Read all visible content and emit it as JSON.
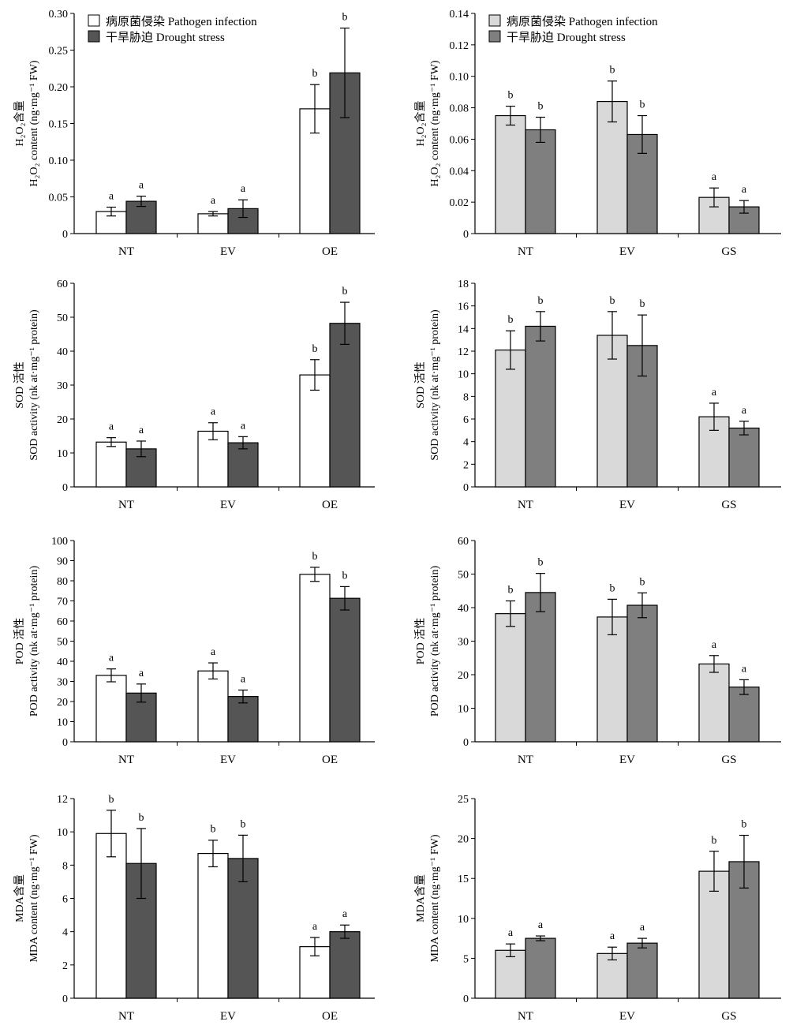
{
  "legend": {
    "pathogen": "病原菌侵染 Pathogen infection",
    "drought": "干旱胁迫 Drought stress"
  },
  "colors": {
    "left_pathogen": "#ffffff",
    "left_drought": "#555555",
    "right_pathogen": "#d9d9d9",
    "right_drought": "#7f7f7f",
    "stroke": "#000000"
  },
  "chart_data": [
    {
      "type": "bar",
      "panel": "left",
      "row": 0,
      "ylabel_zh": "H₂O₂含量",
      "ylabel_en": "H₂O₂ content (ng·mg⁻¹ FW)",
      "categories": [
        "NT",
        "EV",
        "OE"
      ],
      "ylim": [
        0,
        0.3
      ],
      "yticks": [
        "0",
        "0.05",
        "0.10",
        "0.15",
        "0.20",
        "0.25",
        "0.30"
      ],
      "legend": true,
      "series": [
        {
          "name": "病原菌侵染 Pathogen infection",
          "values": [
            0.03,
            0.027,
            0.17
          ],
          "errors": [
            0.006,
            0.003,
            0.033
          ],
          "labels": [
            "a",
            "a",
            "b"
          ]
        },
        {
          "name": "干旱胁迫 Drought stress",
          "values": [
            0.044,
            0.034,
            0.219
          ],
          "errors": [
            0.007,
            0.012,
            0.061
          ],
          "labels": [
            "a",
            "a",
            "b"
          ]
        }
      ]
    },
    {
      "type": "bar",
      "panel": "right",
      "row": 0,
      "ylabel_zh": "H₂O₂含量",
      "ylabel_en": "H₂O₂ content (ng·mg⁻¹ FW)",
      "categories": [
        "NT",
        "EV",
        "GS"
      ],
      "ylim": [
        0,
        0.14
      ],
      "yticks": [
        "0",
        "0.02",
        "0.04",
        "0.06",
        "0.08",
        "0.10",
        "0.12",
        "0.14"
      ],
      "legend": true,
      "series": [
        {
          "name": "病原菌侵染 Pathogen infection",
          "values": [
            0.075,
            0.084,
            0.023
          ],
          "errors": [
            0.006,
            0.013,
            0.006
          ],
          "labels": [
            "b",
            "b",
            "a"
          ]
        },
        {
          "name": "干旱胁迫 Drought stress",
          "values": [
            0.066,
            0.063,
            0.017
          ],
          "errors": [
            0.008,
            0.012,
            0.004
          ],
          "labels": [
            "b",
            "b",
            "a"
          ]
        }
      ]
    },
    {
      "type": "bar",
      "panel": "left",
      "row": 1,
      "ylabel_zh": "SOD 活性",
      "ylabel_en": "SOD activity (nk at·mg⁻¹ protein)",
      "categories": [
        "NT",
        "EV",
        "OE"
      ],
      "ylim": [
        0,
        60
      ],
      "yticks": [
        "0",
        "10",
        "20",
        "30",
        "40",
        "50",
        "60"
      ],
      "legend": false,
      "series": [
        {
          "name": "病原菌侵染 Pathogen infection",
          "values": [
            13.2,
            16.4,
            33.0
          ],
          "errors": [
            1.3,
            2.5,
            4.5
          ],
          "labels": [
            "a",
            "a",
            "b"
          ]
        },
        {
          "name": "干旱胁迫 Drought stress",
          "values": [
            11.2,
            13.0,
            48.2
          ],
          "errors": [
            2.3,
            1.8,
            6.2
          ],
          "labels": [
            "a",
            "a",
            "b"
          ]
        }
      ]
    },
    {
      "type": "bar",
      "panel": "right",
      "row": 1,
      "ylabel_zh": "SOD 活性",
      "ylabel_en": "SOD activity (nk at·mg⁻¹ protein)",
      "categories": [
        "NT",
        "EV",
        "GS"
      ],
      "ylim": [
        0,
        18
      ],
      "yticks": [
        "0",
        "2",
        "4",
        "6",
        "8",
        "10",
        "12",
        "14",
        "16",
        "18"
      ],
      "legend": false,
      "series": [
        {
          "name": "病原菌侵染 Pathogen infection",
          "values": [
            12.1,
            13.4,
            6.2
          ],
          "errors": [
            1.7,
            2.1,
            1.2
          ],
          "labels": [
            "b",
            "b",
            "a"
          ]
        },
        {
          "name": "干旱胁迫 Drought stress",
          "values": [
            14.2,
            12.5,
            5.2
          ],
          "errors": [
            1.3,
            2.7,
            0.6
          ],
          "labels": [
            "b",
            "b",
            "a"
          ]
        }
      ]
    },
    {
      "type": "bar",
      "panel": "left",
      "row": 2,
      "ylabel_zh": "POD 活性",
      "ylabel_en": "POD activity (nk at·mg⁻¹ protein)",
      "categories": [
        "NT",
        "EV",
        "OE"
      ],
      "ylim": [
        0,
        100
      ],
      "yticks": [
        "0",
        "10",
        "20",
        "30",
        "40",
        "50",
        "60",
        "70",
        "80",
        "90",
        "100"
      ],
      "legend": false,
      "series": [
        {
          "name": "病原菌侵染 Pathogen infection",
          "values": [
            33.0,
            35.2,
            83.2
          ],
          "errors": [
            3.2,
            4.0,
            3.5
          ],
          "labels": [
            "a",
            "a",
            "b"
          ]
        },
        {
          "name": "干旱胁迫 Drought stress",
          "values": [
            24.2,
            22.5,
            71.3
          ],
          "errors": [
            4.5,
            3.2,
            5.8
          ],
          "labels": [
            "a",
            "a",
            "b"
          ]
        }
      ]
    },
    {
      "type": "bar",
      "panel": "right",
      "row": 2,
      "ylabel_zh": "POD 活性",
      "ylabel_en": "POD activity (nk at·mg⁻¹ protein)",
      "categories": [
        "NT",
        "EV",
        "GS"
      ],
      "ylim": [
        0,
        60
      ],
      "yticks": [
        "0",
        "10",
        "20",
        "30",
        "40",
        "50",
        "60"
      ],
      "legend": false,
      "series": [
        {
          "name": "病原菌侵染 Pathogen infection",
          "values": [
            38.2,
            37.2,
            23.2
          ],
          "errors": [
            3.8,
            5.3,
            2.5
          ],
          "labels": [
            "b",
            "b",
            "a"
          ]
        },
        {
          "name": "干旱胁迫 Drought stress",
          "values": [
            44.5,
            40.7,
            16.3
          ],
          "errors": [
            5.7,
            3.7,
            2.2
          ],
          "labels": [
            "b",
            "b",
            "a"
          ]
        }
      ]
    },
    {
      "type": "bar",
      "panel": "left",
      "row": 3,
      "ylabel_zh": "MDA含量",
      "ylabel_en": "MDA content (ng·mg⁻¹ FW)",
      "categories": [
        "NT",
        "EV",
        "OE"
      ],
      "ylim": [
        0,
        12
      ],
      "yticks": [
        "0",
        "2",
        "4",
        "6",
        "8",
        "10",
        "12"
      ],
      "legend": false,
      "series": [
        {
          "name": "病原菌侵染 Pathogen infection",
          "values": [
            9.9,
            8.7,
            3.1
          ],
          "errors": [
            1.4,
            0.8,
            0.55
          ],
          "labels": [
            "b",
            "b",
            "a"
          ]
        },
        {
          "name": "干旱胁迫 Drought stress",
          "values": [
            8.1,
            8.4,
            4.0
          ],
          "errors": [
            2.1,
            1.4,
            0.4
          ],
          "labels": [
            "b",
            "b",
            "a"
          ]
        }
      ]
    },
    {
      "type": "bar",
      "panel": "right",
      "row": 3,
      "ylabel_zh": "MDA含量",
      "ylabel_en": "MDA content (ng·mg⁻¹ FW)",
      "categories": [
        "NT",
        "EV",
        "GS"
      ],
      "ylim": [
        0,
        25
      ],
      "yticks": [
        "0",
        "5",
        "10",
        "15",
        "20",
        "25"
      ],
      "legend": false,
      "series": [
        {
          "name": "病原菌侵染 Pathogen infection",
          "values": [
            6.0,
            5.6,
            15.9
          ],
          "errors": [
            0.8,
            0.8,
            2.5
          ],
          "labels": [
            "a",
            "a",
            "b"
          ]
        },
        {
          "name": "干旱胁迫 Drought stress",
          "values": [
            7.5,
            6.9,
            17.1
          ],
          "errors": [
            0.3,
            0.6,
            3.3
          ],
          "labels": [
            "a",
            "a",
            "b"
          ]
        }
      ]
    }
  ]
}
